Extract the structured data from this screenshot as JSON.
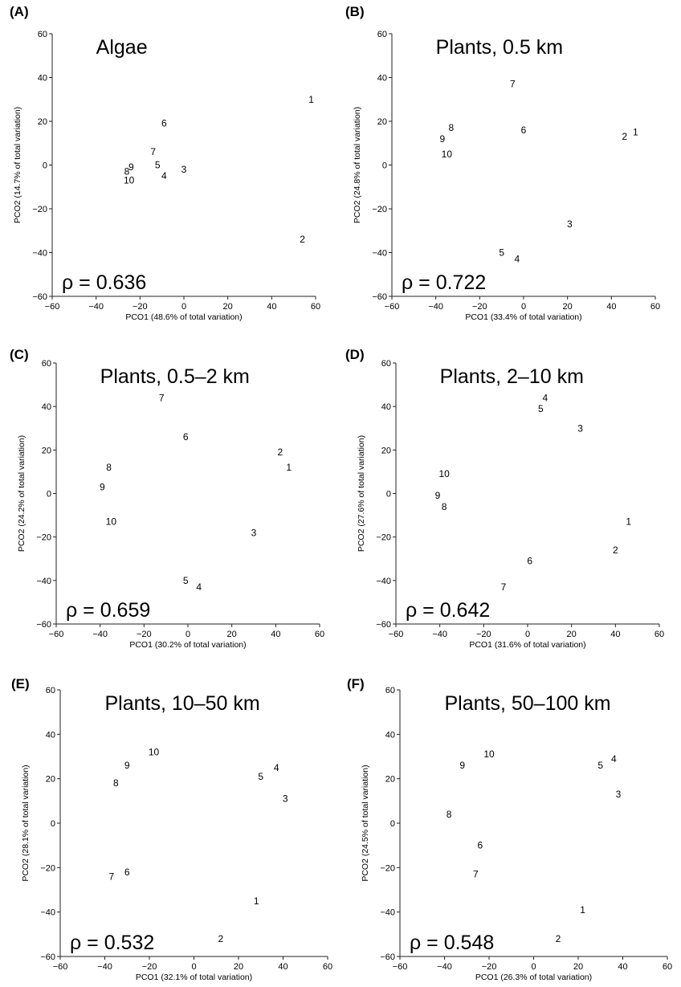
{
  "chart_data": [
    {
      "type": "scatter",
      "panel": "(A)",
      "title": "Algae",
      "annotation": "ρ = 0.636",
      "xlabel": "PCO1 (48.6% of total variation)",
      "ylabel": "PCO2 (14.7% of total variation)",
      "xlim": [
        -60,
        60
      ],
      "ylim": [
        -60,
        60
      ],
      "xticks": [
        "−60",
        "−40",
        "−20",
        "0",
        "20",
        "40",
        "60"
      ],
      "yticks": [
        "60",
        "40",
        "20",
        "0",
        "−20",
        "−40",
        "−60"
      ],
      "points": [
        {
          "label": "1",
          "x": 58,
          "y": 30
        },
        {
          "label": "2",
          "x": 54,
          "y": -34
        },
        {
          "label": "3",
          "x": 0,
          "y": -2
        },
        {
          "label": "4",
          "x": -9,
          "y": -5
        },
        {
          "label": "5",
          "x": -12,
          "y": 0
        },
        {
          "label": "6",
          "x": -9,
          "y": 19
        },
        {
          "label": "7",
          "x": -14,
          "y": 6
        },
        {
          "label": "8",
          "x": -26,
          "y": -3
        },
        {
          "label": "9",
          "x": -24,
          "y": -1
        },
        {
          "label": "10",
          "x": -25,
          "y": -7
        }
      ]
    },
    {
      "type": "scatter",
      "panel": "(B)",
      "title": "Plants, 0.5 km",
      "annotation": "ρ = 0.722",
      "xlabel": "PCO1 (33.4% of total variation)",
      "ylabel": "PCO2 (24.8% of total variation)",
      "xlim": [
        -60,
        60
      ],
      "ylim": [
        -60,
        60
      ],
      "xticks": [
        "−60",
        "−40",
        "−20",
        "0",
        "20",
        "40",
        "60"
      ],
      "yticks": [
        "60",
        "40",
        "20",
        "0",
        "−20",
        "−40",
        "−60"
      ],
      "points": [
        {
          "label": "1",
          "x": 51,
          "y": 15
        },
        {
          "label": "2",
          "x": 46,
          "y": 13
        },
        {
          "label": "3",
          "x": 21,
          "y": -27
        },
        {
          "label": "4",
          "x": -3,
          "y": -43
        },
        {
          "label": "5",
          "x": -10,
          "y": -40
        },
        {
          "label": "6",
          "x": 0,
          "y": 16
        },
        {
          "label": "7",
          "x": -5,
          "y": 37
        },
        {
          "label": "8",
          "x": -33,
          "y": 17
        },
        {
          "label": "9",
          "x": -37,
          "y": 12
        },
        {
          "label": "10",
          "x": -35,
          "y": 5
        }
      ]
    },
    {
      "type": "scatter",
      "panel": "(C)",
      "title": "Plants, 0.5–2 km",
      "annotation": "ρ = 0.659",
      "xlabel": "PCO1 (30.2% of total variation)",
      "ylabel": "PCO2 (24.2% of total variation)",
      "xlim": [
        -60,
        60
      ],
      "ylim": [
        -60,
        60
      ],
      "xticks": [
        "−60",
        "−40",
        "−20",
        "0",
        "20",
        "40",
        "60"
      ],
      "yticks": [
        "60",
        "40",
        "20",
        "0",
        "−20",
        "−40",
        "−60"
      ],
      "points": [
        {
          "label": "1",
          "x": 46,
          "y": 12
        },
        {
          "label": "2",
          "x": 42,
          "y": 19
        },
        {
          "label": "3",
          "x": 30,
          "y": -18
        },
        {
          "label": "4",
          "x": 5,
          "y": -43
        },
        {
          "label": "5",
          "x": -1,
          "y": -40
        },
        {
          "label": "6",
          "x": -1,
          "y": 26
        },
        {
          "label": "7",
          "x": -12,
          "y": 44
        },
        {
          "label": "8",
          "x": -36,
          "y": 12
        },
        {
          "label": "9",
          "x": -39,
          "y": 3
        },
        {
          "label": "10",
          "x": -35,
          "y": -13
        }
      ]
    },
    {
      "type": "scatter",
      "panel": "(D)",
      "title": "Plants, 2–10 km",
      "annotation": "ρ = 0.642",
      "xlabel": "PCO1 (31.6% of total variation)",
      "ylabel": "PCO2 (27.6% of total variation)",
      "xlim": [
        -60,
        60
      ],
      "ylim": [
        -60,
        60
      ],
      "xticks": [
        "−60",
        "−40",
        "−20",
        "0",
        "20",
        "40",
        "60"
      ],
      "yticks": [
        "60",
        "40",
        "20",
        "0",
        "−20",
        "−40",
        "−60"
      ],
      "points": [
        {
          "label": "1",
          "x": 46,
          "y": -13
        },
        {
          "label": "2",
          "x": 40,
          "y": -26
        },
        {
          "label": "3",
          "x": 24,
          "y": 30
        },
        {
          "label": "4",
          "x": 8,
          "y": 44
        },
        {
          "label": "5",
          "x": 6,
          "y": 39
        },
        {
          "label": "6",
          "x": 1,
          "y": -31
        },
        {
          "label": "7",
          "x": -11,
          "y": -43
        },
        {
          "label": "8",
          "x": -38,
          "y": -6
        },
        {
          "label": "9",
          "x": -41,
          "y": -1
        },
        {
          "label": "10",
          "x": -38,
          "y": 9
        }
      ]
    },
    {
      "type": "scatter",
      "panel": "(E)",
      "title": "Plants, 10–50 km",
      "annotation": "ρ = 0.532",
      "xlabel": "PCO1 (32.1% of total variation)",
      "ylabel": "PCO2 (28.1% of total variation)",
      "xlim": [
        -60,
        60
      ],
      "ylim": [
        -60,
        60
      ],
      "xticks": [
        "−60",
        "−40",
        "−20",
        "0",
        "20",
        "40",
        "60"
      ],
      "yticks": [
        "60",
        "40",
        "20",
        "0",
        "−20",
        "−40",
        "−60"
      ],
      "points": [
        {
          "label": "1",
          "x": 28,
          "y": -35
        },
        {
          "label": "2",
          "x": 12,
          "y": -52
        },
        {
          "label": "3",
          "x": 41,
          "y": 11
        },
        {
          "label": "4",
          "x": 37,
          "y": 25
        },
        {
          "label": "5",
          "x": 30,
          "y": 21
        },
        {
          "label": "6",
          "x": -30,
          "y": -22
        },
        {
          "label": "7",
          "x": -37,
          "y": -24
        },
        {
          "label": "8",
          "x": -35,
          "y": 18
        },
        {
          "label": "9",
          "x": -30,
          "y": 26
        },
        {
          "label": "10",
          "x": -18,
          "y": 32
        }
      ]
    },
    {
      "type": "scatter",
      "panel": "(F)",
      "title": "Plants, 50–100 km",
      "annotation": "ρ = 0.548",
      "xlabel": "PCO1 (26.3% of total variation)",
      "ylabel": "PCO2 (24.5% of total variation)",
      "xlim": [
        -60,
        60
      ],
      "ylim": [
        -60,
        60
      ],
      "xticks": [
        "−60",
        "−40",
        "−20",
        "0",
        "20",
        "40",
        "60"
      ],
      "yticks": [
        "60",
        "40",
        "20",
        "0",
        "−20",
        "−40",
        "−60"
      ],
      "points": [
        {
          "label": "1",
          "x": 22,
          "y": -39
        },
        {
          "label": "2",
          "x": 11,
          "y": -52
        },
        {
          "label": "3",
          "x": 38,
          "y": 13
        },
        {
          "label": "4",
          "x": 36,
          "y": 29
        },
        {
          "label": "5",
          "x": 30,
          "y": 26
        },
        {
          "label": "6",
          "x": -24,
          "y": -10
        },
        {
          "label": "7",
          "x": -26,
          "y": -23
        },
        {
          "label": "8",
          "x": -38,
          "y": 4
        },
        {
          "label": "9",
          "x": -32,
          "y": 26
        },
        {
          "label": "10",
          "x": -20,
          "y": 31
        }
      ]
    }
  ]
}
